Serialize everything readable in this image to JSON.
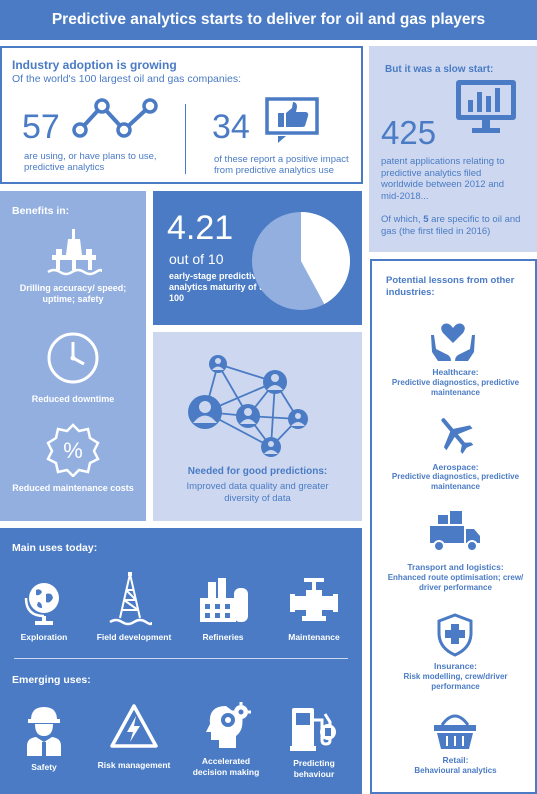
{
  "title": "Predictive analytics starts to deliver for oil and gas players",
  "adoption": {
    "heading": "Industry adoption is growing",
    "subheading": "Of the world's 100 largest oil and gas companies:",
    "stat1_value": "57",
    "stat1_label": "are using, or have plans to use, predictive analytics",
    "stat2_value": "34",
    "stat2_label": "of these report a positive impact from predictive analytics use"
  },
  "slow_start": {
    "heading": "But it was a slow start:",
    "value": "425",
    "label": "patent applications relating to predictive analytics filed worldwide between 2012 and mid-2018...",
    "note_prefix": "Of which, ",
    "note_number": "5",
    "note_suffix": " are specific to oil and gas (the first filed in 2016)"
  },
  "benefits": {
    "heading": "Benefits in:",
    "items": [
      {
        "label": "Drilling accuracy/ speed; uptime; safety",
        "icon": "oil-rig-icon"
      },
      {
        "label": "Reduced downtime",
        "icon": "clock-icon"
      },
      {
        "label": "Reduced maintenance costs",
        "icon": "percent-badge-icon"
      }
    ]
  },
  "maturity": {
    "value": "4.21",
    "out_of": "out of 10",
    "label": "early-stage predictive analytics maturity of top 100",
    "fraction": 0.421
  },
  "predictions": {
    "heading": "Needed for good predictions:",
    "text": "Improved data quality and greater diversity of data"
  },
  "lessons": {
    "heading": "Potential lessons from other industries:",
    "items": [
      {
        "title": "Healthcare:",
        "text": "Predictive diagnostics, predictive maintenance",
        "icon": "heart-hands-icon"
      },
      {
        "title": "Aerospace:",
        "text": "Predictive diagnostics, predictive maintenance",
        "icon": "airplane-icon"
      },
      {
        "title": "Transport and logistics:",
        "text": "Enhanced route optimisation; crew/ driver performance",
        "icon": "truck-icon"
      },
      {
        "title": "Insurance:",
        "text": "Risk modelling, crew/driver performance",
        "icon": "shield-cross-icon"
      },
      {
        "title": "Retail:",
        "text": "Behavioural analytics",
        "icon": "basket-icon"
      }
    ]
  },
  "main_uses": {
    "heading": "Main uses today:",
    "items": [
      {
        "label": "Exploration",
        "icon": "globe-icon"
      },
      {
        "label": "Field development",
        "icon": "derrick-icon"
      },
      {
        "label": "Refineries",
        "icon": "refinery-icon"
      },
      {
        "label": "Maintenance",
        "icon": "valve-icon"
      }
    ]
  },
  "emerging_uses": {
    "heading": "Emerging uses:",
    "items": [
      {
        "label": "Safety",
        "icon": "hard-hat-worker-icon"
      },
      {
        "label": "Risk management",
        "icon": "high-voltage-icon"
      },
      {
        "label": "Accelerated decision making",
        "icon": "head-gears-icon"
      },
      {
        "label": "Predicting behaviour",
        "icon": "fuel-pump-icon"
      }
    ]
  },
  "colors": {
    "dark_blue": "#4a7bc4",
    "mid_blue": "#92afe0",
    "light_blue": "#cdd8f0",
    "white": "#ffffff"
  }
}
